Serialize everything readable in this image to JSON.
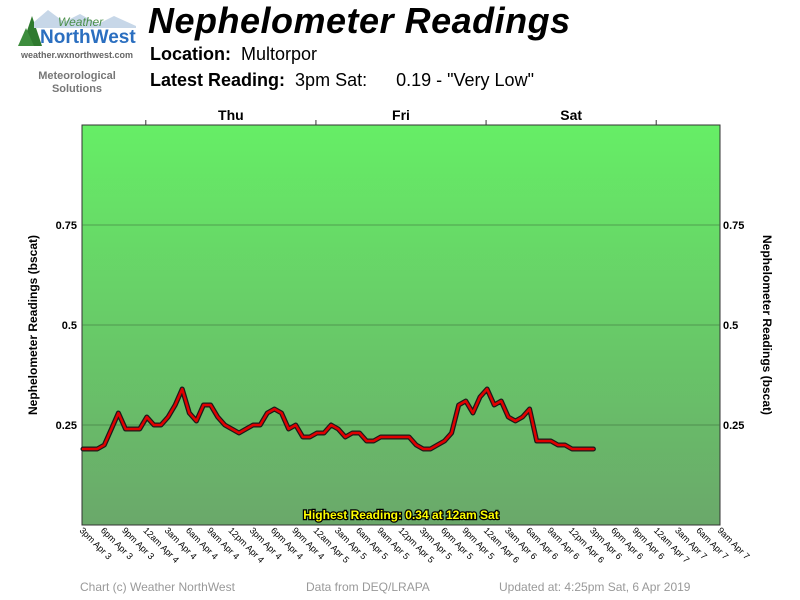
{
  "header": {
    "title": "Nephelometer Readings",
    "location_label": "Location:",
    "location_value": "Multorpor",
    "latest_label": "Latest Reading:",
    "latest_time": "3pm Sat:",
    "latest_value": "0.19 - \"Very Low\""
  },
  "logo": {
    "word1": "Weather",
    "word2": "NorthWest",
    "url": "weather.wxnorthwest.com",
    "subtitle_line1": "Meteorological",
    "subtitle_line2": "Solutions"
  },
  "footer": {
    "copyright": "Chart (c) Weather NorthWest",
    "source": "Data from DEQ/LRAPA",
    "updated": "Updated at: 4:25pm Sat, 6 Apr 2019"
  },
  "colors": {
    "line": "#e00000",
    "line_outline": "#1a1a1a",
    "band_top": "#66ee66",
    "band_bottom": "#6aa86a",
    "highest_text": "#ffff00"
  },
  "chart_data": {
    "type": "line",
    "ylabel": "Nephelometer Readings (bscat)",
    "ylim": [
      0,
      1
    ],
    "yticks": [
      0.25,
      0.5,
      0.75
    ],
    "ytick_labels": [
      "0.25",
      "0.5",
      "0.75"
    ],
    "grid": true,
    "day_labels": [
      "Thu",
      "Fri",
      "Sat"
    ],
    "x_tick_labels": [
      "3pm Apr 3",
      "6pm Apr 3",
      "9pm Apr 3",
      "12am Apr 4",
      "3am Apr 4",
      "6am Apr 4",
      "9am Apr 4",
      "12pm Apr 4",
      "3pm Apr 4",
      "6pm Apr 4",
      "9pm Apr 4",
      "12am Apr 5",
      "3am Apr 5",
      "6am Apr 5",
      "9am Apr 5",
      "12pm Apr 5",
      "3pm Apr 5",
      "6pm Apr 5",
      "9pm Apr 5",
      "12am Apr 6",
      "3am Apr 6",
      "6am Apr 6",
      "9am Apr 6",
      "12pm Apr 6",
      "3pm Apr 6",
      "6pm Apr 6",
      "9pm Apr 6",
      "12am Apr 7",
      "3am Apr 7",
      "6am Apr 7",
      "9am Apr 7"
    ],
    "series": [
      {
        "values": [
          0.19,
          0.19,
          0.19,
          0.2,
          0.24,
          0.28,
          0.24,
          0.24,
          0.24,
          0.27,
          0.25,
          0.25,
          0.27,
          0.3,
          0.34,
          0.28,
          0.26,
          0.3,
          0.3,
          0.27,
          0.25,
          0.24,
          0.23,
          0.24,
          0.25,
          0.25,
          0.28,
          0.29,
          0.28,
          0.24,
          0.25,
          0.22,
          0.22,
          0.23,
          0.23,
          0.25,
          0.24,
          0.22,
          0.23,
          0.23,
          0.21,
          0.21,
          0.22,
          0.22,
          0.22,
          0.22,
          0.22,
          0.2,
          0.19,
          0.19,
          0.2,
          0.21,
          0.23,
          0.3,
          0.31,
          0.28,
          0.32,
          0.34,
          0.3,
          0.31,
          0.27,
          0.26,
          0.27,
          0.29,
          0.21,
          0.21,
          0.21,
          0.2,
          0.2,
          0.19,
          0.19,
          0.19,
          0.19
        ]
      }
    ],
    "annotation": "Highest Reading: 0.34 at 12am Sat"
  }
}
